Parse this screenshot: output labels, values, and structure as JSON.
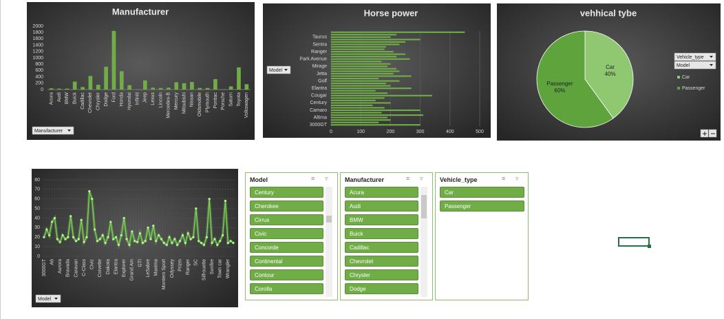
{
  "chart_data": [
    {
      "type": "bar",
      "title": "Manufacturer",
      "filter": "Manufacturer",
      "color": "#70ad47",
      "categories": [
        "Acura",
        "Audi",
        "BMW",
        "Buick",
        "Cadillac",
        "Chevrolet",
        "Chrysler",
        "Dodge",
        "Ford",
        "Honda",
        "Hyundai",
        "Infiniti",
        "Jeep",
        "Lexus",
        "Lincoln",
        "Mercedes-B",
        "Mercury",
        "Mitsubishi",
        "Nissan",
        "Oldsmobile",
        "Plymouth",
        "Pontiac",
        "Porsche",
        "Saturn",
        "Toyota",
        "Volkswagen"
      ],
      "values": [
        40,
        30,
        30,
        250,
        80,
        430,
        150,
        720,
        1850,
        580,
        140,
        10,
        290,
        60,
        50,
        60,
        230,
        200,
        240,
        50,
        50,
        330,
        10,
        100,
        700,
        170
      ],
      "ylim": [
        0,
        2000
      ],
      "yticks": [
        0,
        200,
        400,
        600,
        800,
        1000,
        1200,
        1400,
        1600,
        1800,
        2000
      ],
      "grid": false
    },
    {
      "type": "bar",
      "horizontal": true,
      "title": "Horse power",
      "filter": "Model",
      "color": "#70ad47",
      "categories": [
        "3000GT",
        null,
        null,
        "Altima",
        null,
        null,
        "Camaro",
        null,
        null,
        "Century",
        null,
        null,
        "Cougar",
        null,
        null,
        "Elantra",
        null,
        null,
        "Golf",
        null,
        null,
        "Jetta",
        null,
        null,
        "Mirage",
        null,
        null,
        "Park Avenue",
        null,
        null,
        "Ranger",
        null,
        null,
        "Sentra",
        null,
        null,
        "Taurus",
        null,
        null
      ],
      "values": [
        300,
        160,
        200,
        190,
        310,
        170,
        300,
        180,
        140,
        200,
        150,
        180,
        340,
        190,
        150,
        270,
        200,
        185,
        230,
        160,
        270,
        210,
        230,
        220,
        190,
        200,
        170,
        265,
        220,
        250,
        210,
        180,
        185,
        230,
        250,
        300,
        200,
        220,
        450
      ],
      "xlim": [
        0,
        500
      ],
      "xticks": [
        0,
        100,
        200,
        300,
        400,
        500
      ],
      "grid": true
    },
    {
      "type": "pie",
      "title": "vehhical tybe",
      "filters": [
        "Vehicle_type",
        "Model"
      ],
      "categories": [
        "Car",
        "Passenger"
      ],
      "values": [
        40,
        60
      ],
      "value_labels": [
        "40%",
        "60%"
      ],
      "colors": [
        "#8fc870",
        "#5ea33c"
      ],
      "legend": "right"
    },
    {
      "type": "line",
      "filter": "Model",
      "color": "#7ed957",
      "categories": [
        "3000GT",
        null,
        null,
        "A6",
        null,
        null,
        "Aurora",
        null,
        null,
        "Bravada",
        null,
        null,
        "Caravan",
        null,
        null,
        "C-Class",
        null,
        null,
        "Civic",
        null,
        null,
        "Corvette",
        null,
        null,
        "Dakota",
        null,
        null,
        "Elantra",
        null,
        null,
        "Explorer",
        null,
        null,
        "Grand Am",
        null,
        null,
        "GTI",
        null,
        null,
        "LeSabre",
        null,
        null,
        "Maxima",
        null,
        null,
        "Montero Sport",
        null,
        null,
        "Odyssey",
        null,
        null,
        "Prizm",
        null,
        null,
        "Ranger",
        null,
        null,
        "SC",
        null,
        null,
        "Silhouette",
        null,
        null,
        "Sunfire",
        null,
        null,
        "Town car",
        null,
        null,
        "Wrangler",
        null,
        null
      ],
      "values": [
        20,
        28,
        22,
        36,
        40,
        18,
        15,
        22,
        18,
        20,
        42,
        20,
        16,
        18,
        38,
        15,
        20,
        68,
        60,
        28,
        16,
        18,
        22,
        14,
        20,
        36,
        18,
        20,
        12,
        22,
        40,
        18,
        12,
        26,
        16,
        15,
        24,
        14,
        16,
        30,
        18,
        32,
        16,
        22,
        18,
        14,
        12,
        20,
        14,
        18,
        12,
        16,
        22,
        14,
        24,
        18,
        20,
        50,
        16,
        14,
        12,
        20,
        60,
        14,
        18,
        12,
        16,
        22,
        58,
        14,
        16,
        14
      ],
      "ylim": [
        0,
        80
      ],
      "yticks": [
        0,
        10,
        20,
        30,
        40,
        50,
        60,
        70,
        80
      ],
      "grid": true
    }
  ],
  "slicers": [
    {
      "title": "Model",
      "items": [
        "Century",
        "Cherokee",
        "Cirrus",
        "Civic",
        "Concorde",
        "Continental",
        "Contour",
        "Corolla"
      ]
    },
    {
      "title": "Manufacturer",
      "items": [
        "Acura",
        "Audi",
        "BMW",
        "Buick",
        "Cadillac",
        "Chevrolet",
        "Chrysler",
        "Dodge"
      ]
    },
    {
      "title": "Vehicle_type",
      "items": [
        "Car",
        "Passenger"
      ]
    }
  ]
}
